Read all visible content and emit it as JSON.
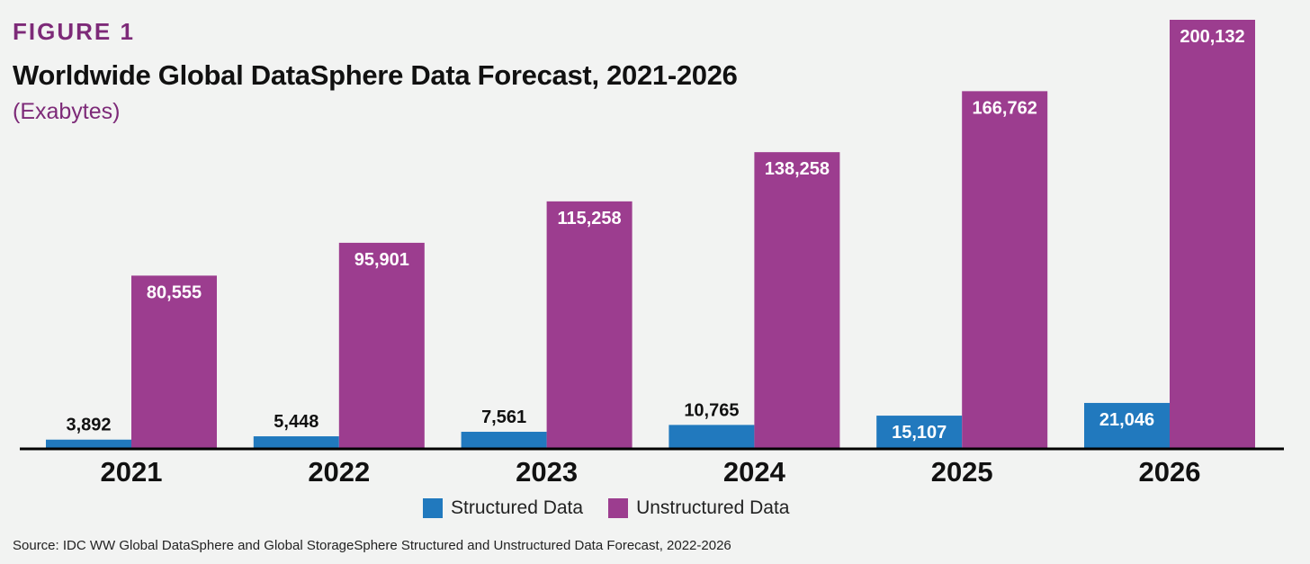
{
  "header": {
    "figure_label": "FIGURE 1",
    "title": "Worldwide Global DataSphere Data Forecast, 2021-2026",
    "subtitle": "(Exabytes)"
  },
  "source": "Source: IDC WW Global DataSphere and Global StorageSphere Structured and Unstructured Data Forecast, 2022-2026",
  "colors": {
    "structured": "#2179be",
    "unstructured": "#9c3d8f",
    "axis": "#000000"
  },
  "chart_data": {
    "type": "bar",
    "title": "Worldwide Global DataSphere Data Forecast, 2021-2026",
    "subtitle": "(Exabytes)",
    "xlabel": "",
    "ylabel": "Exabytes",
    "categories": [
      "2021",
      "2022",
      "2023",
      "2024",
      "2025",
      "2026"
    ],
    "series": [
      {
        "name": "Structured Data",
        "values": [
          3892,
          5448,
          7561,
          10765,
          15107,
          21046
        ],
        "labels": [
          "3,892",
          "5,448",
          "7,561",
          "10,765",
          "15,107",
          "21,046"
        ]
      },
      {
        "name": "Unstructured Data",
        "values": [
          80555,
          95901,
          115258,
          138258,
          166762,
          200132
        ],
        "labels": [
          "80,555",
          "95,901",
          "115,258",
          "138,258",
          "166,762",
          "200,132"
        ]
      }
    ],
    "ylim": [
      0,
      200132
    ],
    "grid": false,
    "legend": "bottom-center"
  }
}
